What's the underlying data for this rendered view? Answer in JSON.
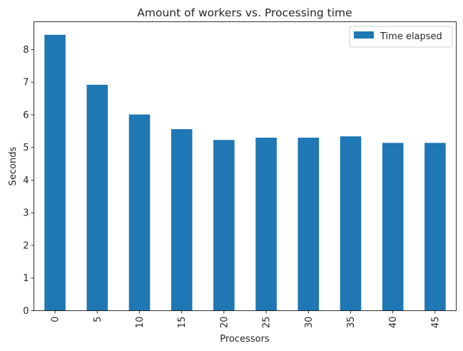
{
  "chart_data": {
    "type": "bar",
    "title": "Amount of workers vs. Processing time",
    "xlabel": "Processors",
    "ylabel": "Seconds",
    "categories": [
      "0",
      "5",
      "10",
      "15",
      "20",
      "25",
      "30",
      "35",
      "40",
      "45"
    ],
    "series": [
      {
        "name": "Time elapsed",
        "values": [
          8.45,
          6.92,
          6.01,
          5.56,
          5.23,
          5.3,
          5.3,
          5.34,
          5.14,
          5.14
        ],
        "color": "#1f77b4"
      }
    ],
    "ylim": [
      0,
      8.85
    ],
    "yticks": [
      0,
      1,
      2,
      3,
      4,
      5,
      6,
      7,
      8
    ],
    "grid": false,
    "legend_position": "top-right",
    "xtick_rotation": "vertical"
  }
}
